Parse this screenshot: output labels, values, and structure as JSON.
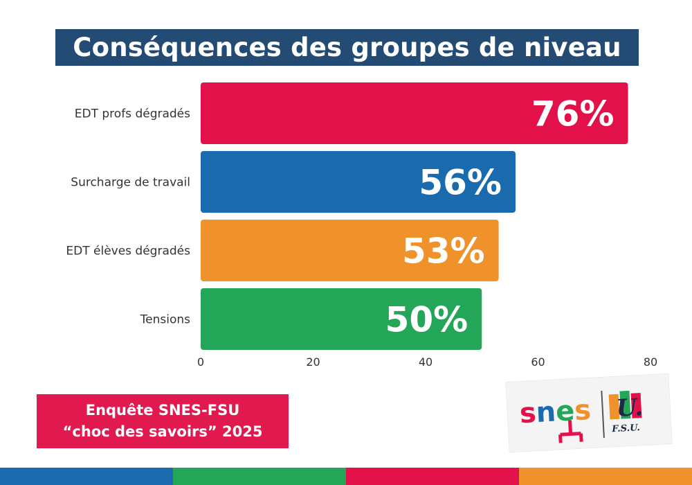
{
  "title": "Conséquences des groupes de niveau",
  "chart_data": {
    "type": "bar",
    "orientation": "horizontal",
    "categories": [
      "EDT profs dégradés",
      "Surcharge de travail",
      "EDT élèves dégradés",
      "Tensions"
    ],
    "values": [
      76,
      56,
      53,
      50
    ],
    "value_labels": [
      "76%",
      "56%",
      "53%",
      "50%"
    ],
    "colors": [
      "#e31149",
      "#1a6aae",
      "#f0922b",
      "#24a659"
    ],
    "xlim": [
      0,
      80
    ],
    "xticks": [
      0,
      20,
      40,
      60,
      80
    ],
    "xlabel": "",
    "ylabel": ""
  },
  "survey": {
    "line1": "Enquête SNES-FSU",
    "line2": "“choc des savoirs” 2025"
  },
  "logo": {
    "snes_text": "snes",
    "fsu_text": "F.S.U."
  },
  "bottom_bar_colors": [
    "#1a6aae",
    "#24a659",
    "#e31149",
    "#f0922b"
  ]
}
